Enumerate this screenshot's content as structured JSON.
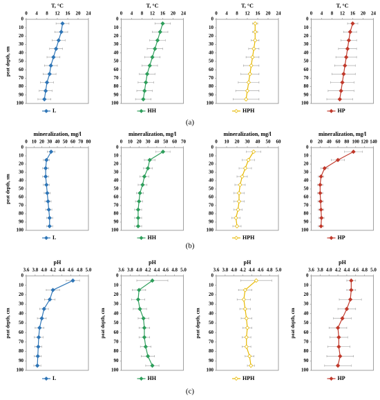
{
  "panels": [
    "(a)",
    "(b)",
    "(c)"
  ],
  "chart_data": [
    {
      "type": "line",
      "title": "T, °C",
      "ylabel": "peat depth, sm",
      "depth": [
        5,
        15,
        25,
        35,
        45,
        55,
        65,
        75,
        85,
        95
      ],
      "xlim": [
        0,
        24
      ],
      "xticks": [
        0,
        4,
        8,
        12,
        16,
        20,
        24
      ],
      "ylim": [
        0,
        100
      ],
      "yticks": [
        0,
        10,
        20,
        30,
        40,
        50,
        60,
        70,
        80,
        90,
        100
      ],
      "series": [
        {
          "name": "L",
          "color": "#2e75b6",
          "values": [
            14,
            13.5,
            12.5,
            11.5,
            10.5,
            9.5,
            9,
            8,
            7.5,
            7
          ],
          "errors": [
            2.5,
            2.5,
            2.5,
            2.5,
            2.5,
            2.5,
            2.5,
            2.5,
            2.5,
            2.5
          ]
        }
      ]
    },
    {
      "type": "line",
      "title": "T, °C",
      "depth": [
        5,
        15,
        25,
        35,
        45,
        55,
        65,
        75,
        85,
        95
      ],
      "xlim": [
        0,
        24
      ],
      "xticks": [
        0,
        4,
        8,
        12,
        16,
        20,
        24
      ],
      "ylim": [
        0,
        100
      ],
      "yticks": [
        0,
        10,
        20,
        30,
        40,
        50,
        60,
        70,
        80,
        90,
        100
      ],
      "series": [
        {
          "name": "HH",
          "color": "#2e9e5b",
          "values": [
            16,
            15,
            14,
            13,
            12,
            11,
            10,
            9.5,
            9,
            8.5
          ],
          "errors": [
            3,
            3,
            3,
            3,
            3,
            3,
            3,
            3,
            3,
            3
          ]
        }
      ]
    },
    {
      "type": "line",
      "title": "T, °C",
      "depth": [
        5,
        15,
        25,
        35,
        45,
        55,
        65,
        75,
        85,
        95
      ],
      "xlim": [
        0,
        24
      ],
      "xticks": [
        0,
        4,
        8,
        12,
        16,
        20,
        24
      ],
      "ylim": [
        0,
        100
      ],
      "yticks": [
        0,
        10,
        20,
        30,
        40,
        50,
        60,
        70,
        80,
        90,
        100
      ],
      "series": [
        {
          "name": "HPH",
          "color": "#e6b800",
          "values": [
            15,
            15,
            15,
            14.5,
            14,
            13.5,
            13,
            12.5,
            12,
            11.5
          ],
          "errors": [
            1,
            1,
            1.5,
            2,
            2.5,
            3,
            3.5,
            4,
            4.5,
            5
          ]
        }
      ]
    },
    {
      "type": "line",
      "title": "T, °C",
      "depth": [
        5,
        15,
        25,
        35,
        45,
        55,
        65,
        75,
        85,
        95
      ],
      "xlim": [
        0,
        24
      ],
      "xticks": [
        0,
        4,
        8,
        12,
        16,
        20,
        24
      ],
      "ylim": [
        0,
        100
      ],
      "yticks": [
        0,
        10,
        20,
        30,
        40,
        50,
        60,
        70,
        80,
        90,
        100
      ],
      "series": [
        {
          "name": "HP",
          "color": "#c0392b",
          "values": [
            16,
            15,
            14.5,
            14,
            13.5,
            13,
            12.5,
            12,
            11.5,
            11
          ],
          "errors": [
            2,
            2.5,
            3,
            3.5,
            4,
            4,
            4.5,
            4.5,
            5,
            5
          ]
        }
      ]
    },
    {
      "type": "line",
      "title": "mineralization, mg/l",
      "ylabel": "peat depth, sm",
      "depth": [
        5,
        15,
        25,
        35,
        45,
        55,
        65,
        75,
        85,
        95
      ],
      "xlim": [
        0,
        80
      ],
      "xticks": [
        0,
        10,
        20,
        30,
        40,
        50,
        60,
        70,
        80
      ],
      "ylim": [
        0,
        100
      ],
      "yticks": [
        0,
        10,
        20,
        30,
        40,
        50,
        60,
        70,
        80,
        90,
        100
      ],
      "series": [
        {
          "name": "L",
          "color": "#2e75b6",
          "values": [
            32,
            26,
            25,
            25,
            26,
            27,
            28,
            29,
            30,
            30
          ],
          "errors": [
            5,
            4,
            4,
            4,
            4,
            4,
            4,
            4,
            4,
            4
          ]
        }
      ]
    },
    {
      "type": "line",
      "title": "mineralization, mg/l",
      "depth": [
        5,
        15,
        25,
        35,
        45,
        55,
        65,
        75,
        85,
        95
      ],
      "xlim": [
        0,
        70
      ],
      "xticks": [
        0,
        10,
        20,
        30,
        40,
        50,
        60,
        70
      ],
      "ylim": [
        0,
        100
      ],
      "yticks": [
        0,
        10,
        20,
        30,
        40,
        50,
        60,
        70,
        80,
        90,
        100
      ],
      "series": [
        {
          "name": "HH",
          "color": "#2e9e5b",
          "values": [
            47,
            32,
            30,
            26,
            24,
            21,
            20,
            19,
            19,
            19
          ],
          "errors": [
            8,
            6,
            5,
            5,
            5,
            4,
            4,
            4,
            4,
            4
          ]
        }
      ]
    },
    {
      "type": "line",
      "title": "mineralization, mg/l",
      "depth": [
        5,
        15,
        25,
        35,
        45,
        55,
        65,
        75,
        85,
        95
      ],
      "xlim": [
        0,
        60
      ],
      "xticks": [
        0,
        10,
        20,
        30,
        40,
        50,
        60
      ],
      "ylim": [
        0,
        100
      ],
      "yticks": [
        0,
        10,
        20,
        30,
        40,
        50,
        60,
        70,
        80,
        90,
        100
      ],
      "series": [
        {
          "name": "HPH",
          "color": "#e6b800",
          "values": [
            36,
            31,
            28,
            25,
            23,
            22,
            22,
            21,
            19,
            20
          ],
          "errors": [
            7,
            6,
            6,
            5,
            5,
            5,
            5,
            4,
            4,
            4
          ]
        }
      ]
    },
    {
      "type": "line",
      "title": "mineralization, mg/l",
      "depth": [
        5,
        15,
        25,
        35,
        45,
        55,
        65,
        75,
        85,
        95
      ],
      "xlim": [
        0,
        140
      ],
      "xticks": [
        0,
        20,
        40,
        60,
        80,
        100,
        120,
        140
      ],
      "ylim": [
        0,
        100
      ],
      "yticks": [
        0,
        10,
        20,
        30,
        40,
        50,
        60,
        70,
        80,
        90,
        100
      ],
      "series": [
        {
          "name": "HP",
          "color": "#c0392b",
          "values": [
            95,
            60,
            30,
            22,
            20,
            20,
            21,
            22,
            23,
            22
          ],
          "errors": [
            20,
            15,
            8,
            6,
            6,
            6,
            6,
            6,
            6,
            6
          ]
        }
      ]
    },
    {
      "type": "line",
      "title": "pH",
      "ylabel": "peat depth, cm",
      "depth": [
        5,
        15,
        25,
        35,
        45,
        55,
        65,
        75,
        85,
        95
      ],
      "xlim": [
        3.6,
        5.0
      ],
      "xticks": [
        3.6,
        3.8,
        {
          "value": 4.0,
          "label": "4.0"
        },
        4.2,
        4.4,
        4.6,
        4.8,
        {
          "value": 5.0,
          "label": "5.0"
        }
      ],
      "ylim": [
        0,
        100
      ],
      "yticks": [
        0,
        10,
        20,
        30,
        40,
        50,
        60,
        70,
        80,
        90,
        100
      ],
      "series": [
        {
          "name": "L",
          "color": "#2e75b6",
          "values": [
            4.65,
            4.2,
            4.13,
            4.0,
            3.95,
            3.9,
            3.88,
            3.87,
            3.86,
            3.85
          ],
          "errors": [
            0.15,
            0.15,
            0.12,
            0.1,
            0.1,
            0.1,
            0.1,
            0.08,
            0.08,
            0.08
          ]
        }
      ]
    },
    {
      "type": "line",
      "title": "pH",
      "ylabel": "peat depth, cm",
      "depth": [
        5,
        15,
        25,
        35,
        45,
        55,
        65,
        75,
        85,
        95
      ],
      "xlim": [
        3.6,
        5.0
      ],
      "xticks": [
        3.6,
        3.8,
        {
          "value": 4.0,
          "label": "4.0"
        },
        4.2,
        4.4,
        4.6,
        4.8,
        {
          "value": 5.0,
          "label": "5.0"
        }
      ],
      "ylim": [
        0,
        100
      ],
      "yticks": [
        0,
        10,
        20,
        30,
        40,
        50,
        60,
        70,
        80,
        90,
        100
      ],
      "series": [
        {
          "name": "HH",
          "color": "#2e9e5b",
          "values": [
            4.3,
            4.0,
            3.98,
            4.02,
            4.1,
            4.12,
            4.12,
            4.15,
            4.2,
            4.3
          ],
          "errors": [
            0.35,
            0.15,
            0.15,
            0.15,
            0.12,
            0.12,
            0.12,
            0.12,
            0.15,
            0.15
          ]
        }
      ]
    },
    {
      "type": "line",
      "title": "pH",
      "ylabel": "peat depth, cm",
      "depth": [
        5,
        15,
        25,
        35,
        45,
        55,
        65,
        75,
        85,
        95
      ],
      "xlim": [
        3.6,
        5.0
      ],
      "xticks": [
        3.6,
        3.8,
        {
          "value": 4.0,
          "label": "4.0"
        },
        4.2,
        4.4,
        4.6,
        4.8,
        {
          "value": 5.0,
          "label": "5.0"
        }
      ],
      "ylim": [
        0,
        100
      ],
      "yticks": [
        0,
        10,
        20,
        30,
        40,
        50,
        60,
        70,
        80,
        90,
        100
      ],
      "series": [
        {
          "name": "HPH",
          "color": "#e6b800",
          "values": [
            4.5,
            4.25,
            4.22,
            4.25,
            4.28,
            4.3,
            4.28,
            4.28,
            4.35,
            4.38
          ],
          "errors": [
            0.35,
            0.15,
            0.15,
            0.12,
            0.12,
            0.1,
            0.1,
            0.1,
            0.1,
            0.08
          ]
        }
      ]
    },
    {
      "type": "line",
      "title": "pH",
      "ylabel": "peat depth, cm",
      "depth": [
        5,
        15,
        25,
        35,
        45,
        55,
        65,
        75,
        85,
        95
      ],
      "xlim": [
        3.6,
        5.0
      ],
      "xticks": [
        3.6,
        3.8,
        {
          "value": 4.0,
          "label": "4.0"
        },
        4.2,
        4.4,
        4.6,
        4.8,
        {
          "value": 5.0,
          "label": "5.0"
        }
      ],
      "ylim": [
        0,
        100
      ],
      "yticks": [
        0,
        10,
        20,
        30,
        40,
        50,
        60,
        70,
        80,
        90,
        100
      ],
      "series": [
        {
          "name": "HP",
          "color": "#c0392b",
          "values": [
            4.5,
            4.5,
            4.48,
            4.4,
            4.3,
            4.2,
            4.22,
            4.22,
            4.25,
            4.2
          ],
          "errors": [
            0.1,
            0.1,
            0.25,
            0.2,
            0.2,
            0.2,
            0.2,
            0.25,
            0.3,
            0.3
          ]
        }
      ]
    }
  ]
}
